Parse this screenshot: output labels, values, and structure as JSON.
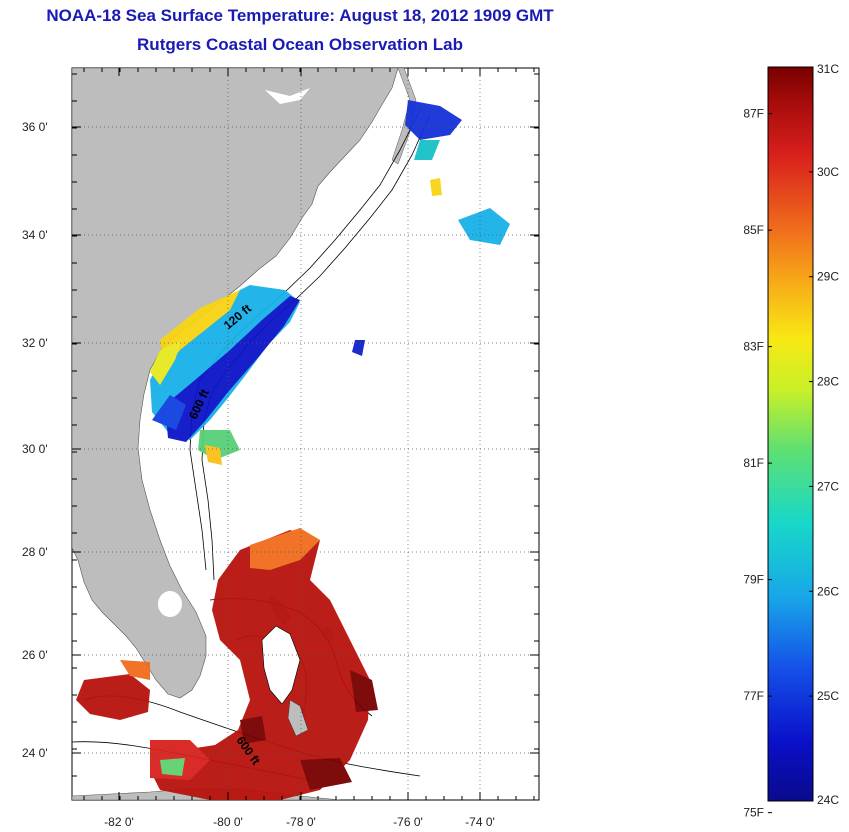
{
  "title": "NOAA-18 Sea Surface Temperature:  August 18, 2012 1909 GMT",
  "subtitle": "Rutgers Coastal Ocean Observation Lab",
  "lon_ticks": [
    "-82 0'",
    "-80 0'",
    "-78 0'",
    "-76 0'",
    "-74 0'"
  ],
  "lat_ticks": [
    "36 0'",
    "34 0'",
    "32 0'",
    "30 0'",
    "28 0'",
    "26 0'",
    "24 0'"
  ],
  "isobath_labels": [
    "120 ft",
    "600 ft",
    "600 ft"
  ],
  "colorbar": {
    "celsius": [
      "31C",
      "30C",
      "29C",
      "28C",
      "27C",
      "26C",
      "25C",
      "24C"
    ],
    "fahrenheit": [
      "87F",
      "85F",
      "83F",
      "81F",
      "79F",
      "77F",
      "75F"
    ],
    "colors": [
      "#800000",
      "#c8141c",
      "#e83a1e",
      "#f2701c",
      "#f6a818",
      "#f8da14",
      "#e8f020",
      "#a8e838",
      "#58d878",
      "#18d0c0",
      "#18b0e8",
      "#1880e8",
      "#1450e0",
      "#1028d0",
      "#0a10b0",
      "#0a0a8c"
    ]
  },
  "colors": {
    "land": "#bdbdbd",
    "title": "#1a1ab4"
  }
}
